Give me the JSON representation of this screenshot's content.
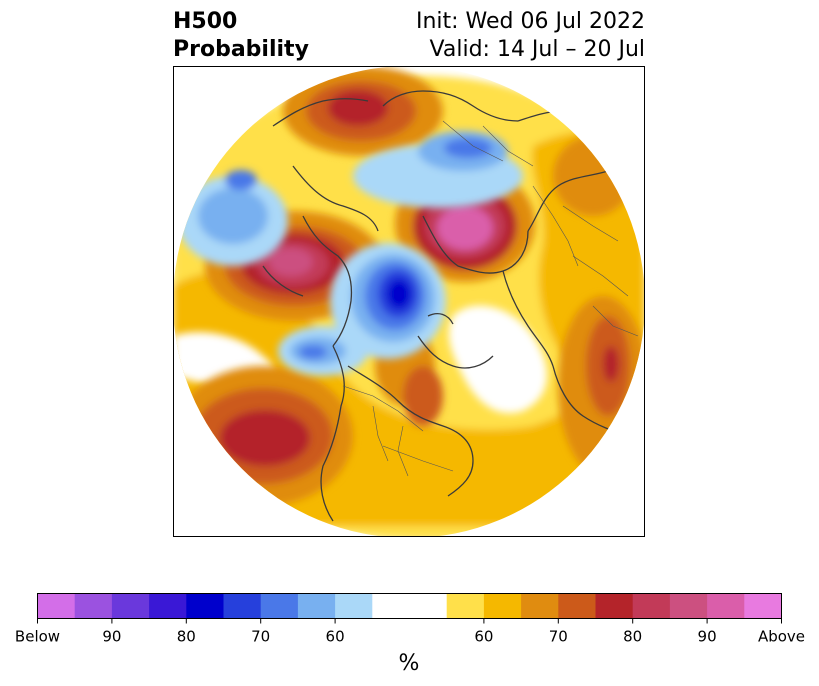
{
  "title": {
    "left_line1": "H500",
    "left_line2": "Probability",
    "right_line1": "Init: Wed 06 Jul 2022",
    "right_line2": "Valid: 14 Jul – 20 Jul"
  },
  "colorbar": {
    "label": "%",
    "ticks": [
      "Below",
      "90",
      "80",
      "70",
      "60",
      "60",
      "70",
      "80",
      "90",
      "Above"
    ],
    "colors": [
      "#d36ee8",
      "#9b52e0",
      "#6a38dc",
      "#3a18d6",
      "#0000cc",
      "#2640dc",
      "#4a78e8",
      "#78b0f0",
      "#aad8f8",
      "#ffffff",
      "#ffffff",
      "#ffe04a",
      "#f5b800",
      "#e08c10",
      "#cc5a1a",
      "#b4242a",
      "#c23a58",
      "#cc5080",
      "#da5eaa",
      "#e87ae0"
    ]
  },
  "map": {
    "projection": "north-polar-stereographic",
    "features": [
      {
        "name": "anomaly-above-north-europe",
        "lon": 20,
        "lat": 65,
        "level": 80
      },
      {
        "name": "anomaly-above-central-asia",
        "lon": 75,
        "lat": 57,
        "level": 90
      },
      {
        "name": "anomaly-above-north-pacific",
        "lon": -160,
        "lat": 55,
        "level": 90
      },
      {
        "name": "anomaly-above-east-pacific",
        "lon": -130,
        "lat": 30,
        "level": 80
      },
      {
        "name": "anomaly-above-north-atlantic",
        "lon": -40,
        "lat": 30,
        "level": 80
      },
      {
        "name": "anomaly-below-arctic",
        "lon": -150,
        "lat": 78,
        "level": 80
      },
      {
        "name": "anomaly-below-barents",
        "lon": 40,
        "lat": 75,
        "level": 70
      },
      {
        "name": "anomaly-below-alaska",
        "lon": -110,
        "lat": 60,
        "level": 60
      },
      {
        "name": "anomaly-below-pacific",
        "lon": 175,
        "lat": 40,
        "level": 70
      }
    ]
  }
}
